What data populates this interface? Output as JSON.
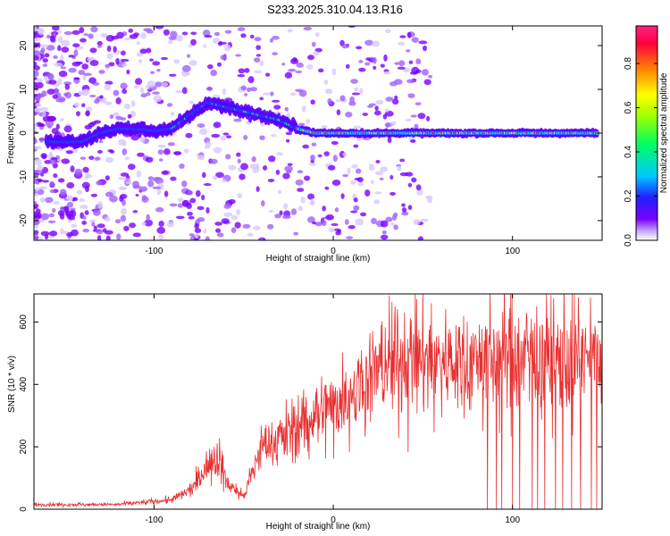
{
  "figure_title": "S233.2025.310.04.13.R16",
  "chart_data": [
    {
      "type": "heatmap",
      "title": "",
      "xlabel": "Height of straight line (km)",
      "ylabel": "Frequency (Hz)",
      "xlim": [
        -167,
        150
      ],
      "ylim": [
        -24.5,
        24.5
      ],
      "xticks": [
        -100,
        0,
        100
      ],
      "yticks": [
        -20,
        -10,
        0,
        10,
        20
      ],
      "colorbar": {
        "label": "Normalized spectral amplitude",
        "range": [
          0,
          0.97
        ],
        "ticks": [
          0.0,
          0.2,
          0.4,
          0.6,
          0.8
        ],
        "colors": [
          "#ffffff",
          "#7a00ff",
          "#2020ff",
          "#00c8ff",
          "#00ff60",
          "#a0ff00",
          "#ffff00",
          "#ff8000",
          "#ff0040",
          "#ff2080"
        ]
      },
      "ridge": {
        "x": [
          -150,
          -140,
          -130,
          -120,
          -110,
          -100,
          -90,
          -80,
          -70,
          -60,
          -50,
          -40,
          -30,
          -20,
          -10,
          0,
          20,
          40,
          60,
          80,
          100,
          120,
          140,
          150
        ],
        "y": [
          -2,
          -2,
          0,
          1,
          1,
          0.5,
          1,
          4,
          7,
          6,
          5,
          4,
          3,
          1,
          0,
          0,
          0,
          0,
          0,
          0,
          0,
          0,
          0,
          0
        ]
      }
    },
    {
      "type": "line",
      "title": "",
      "xlabel": "Height of straight line (km)",
      "ylabel": "SNR (10 * v/v)",
      "xlim": [
        -167,
        150
      ],
      "ylim": [
        0,
        690
      ],
      "xticks": [
        -100,
        0,
        100
      ],
      "yticks": [
        0,
        200,
        400,
        600
      ],
      "color": "#e83030",
      "envelope": {
        "x": [
          -167,
          -120,
          -90,
          -80,
          -70,
          -65,
          -60,
          -50,
          -45,
          -40,
          -30,
          -20,
          -10,
          0,
          10,
          20,
          30,
          50,
          70,
          90,
          110,
          130,
          150
        ],
        "y": [
          15,
          15,
          30,
          60,
          130,
          170,
          90,
          40,
          120,
          200,
          230,
          260,
          300,
          330,
          380,
          420,
          470,
          480,
          470,
          480,
          490,
          470,
          480
        ]
      },
      "dropouts": [
        86,
        91,
        94,
        100,
        104,
        111,
        114,
        118,
        124,
        128,
        133,
        138,
        144,
        147
      ],
      "spike": {
        "x": 99,
        "y": 690
      }
    }
  ]
}
